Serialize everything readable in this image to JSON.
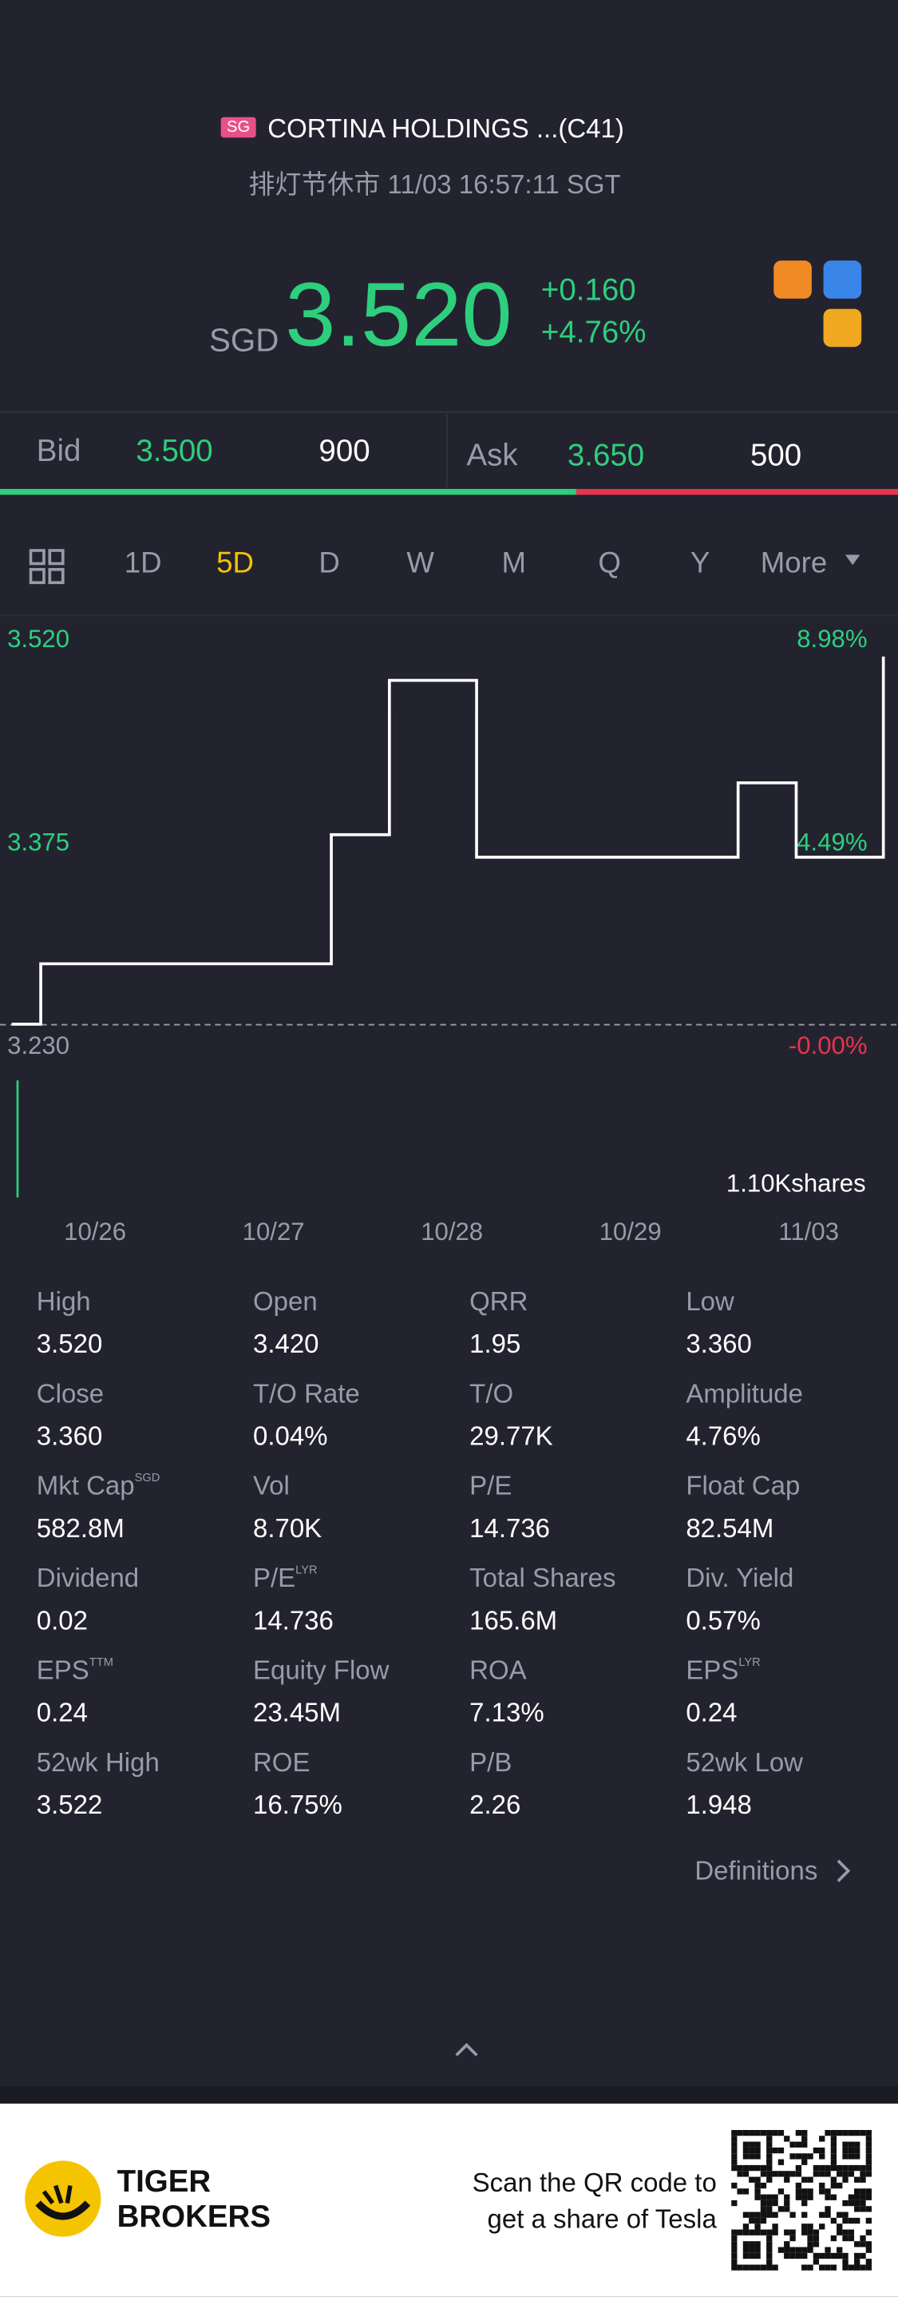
{
  "header": {
    "badge": "SG",
    "name": "CORTINA HOLDINGS ...(C41)",
    "status": "排灯节休市 11/03 16:57:11 SGT"
  },
  "quote": {
    "currency": "SGD",
    "price": "3.520",
    "change": "+0.160",
    "change_pct": "+4.76%"
  },
  "bidask": {
    "bid_label": "Bid",
    "bid": "3.500",
    "bid_size": "900",
    "ask_label": "Ask",
    "ask": "3.650",
    "ask_size": "500"
  },
  "tabs": [
    "1D",
    "5D",
    "D",
    "W",
    "M",
    "Q",
    "Y",
    "More"
  ],
  "chart": {
    "type": "line",
    "color": "#ffffff",
    "values": [
      3.245,
      3.288,
      3.288,
      3.288,
      3.288,
      3.288,
      3.288,
      3.288,
      3.288,
      3.288,
      3.288,
      3.38,
      3.38,
      3.49,
      3.49,
      3.49,
      3.364,
      3.364,
      3.364,
      3.364,
      3.364,
      3.364,
      3.364,
      3.364,
      3.364,
      3.417,
      3.417,
      3.364,
      3.364,
      3.364,
      3.507
    ],
    "ylim": [
      3.23,
      3.52
    ],
    "yticks": [
      {
        "value": 3.52,
        "label": "3.520"
      },
      {
        "value": 3.375,
        "label": "3.375"
      },
      {
        "value": 3.23,
        "label": "3.230"
      }
    ],
    "pct_ticks": [
      {
        "value": 8.98,
        "label": "8.98%"
      },
      {
        "value": 4.49,
        "label": "4.49%"
      },
      {
        "value": 0,
        "label": "-0.00%"
      }
    ],
    "volume_label": "1.10Kshares",
    "dates": [
      "10/26",
      "10/27",
      "10/28",
      "10/29",
      "11/03"
    ]
  },
  "stats": [
    [
      {
        "label": "High",
        "value": "3.520"
      },
      {
        "label": "Open",
        "value": "3.420"
      },
      {
        "label": "QRR",
        "value": "1.95"
      },
      {
        "label": "Low",
        "value": "3.360"
      }
    ],
    [
      {
        "label": "Close",
        "value": "3.360"
      },
      {
        "label": "T/O Rate",
        "value": "0.04%"
      },
      {
        "label": "T/O",
        "value": "29.77K"
      },
      {
        "label": "Amplitude",
        "value": "4.76%"
      }
    ],
    [
      {
        "label": "Mkt Cap",
        "sup": "SGD",
        "value": "582.8M"
      },
      {
        "label": "Vol",
        "value": "8.70K"
      },
      {
        "label": "P/E",
        "value": "14.736"
      },
      {
        "label": "Float Cap",
        "value": "82.54M"
      }
    ],
    [
      {
        "label": "Dividend",
        "value": "0.02"
      },
      {
        "label": "P/E",
        "sup": "LYR",
        "value": "14.736"
      },
      {
        "label": "Total Shares",
        "value": "165.6M"
      },
      {
        "label": "Div. Yield",
        "value": "0.57%"
      }
    ],
    [
      {
        "label": "EPS",
        "sup": "TTM",
        "value": "0.24"
      },
      {
        "label": "Equity Flow",
        "value": "23.45M"
      },
      {
        "label": "ROA",
        "value": "7.13%"
      },
      {
        "label": "EPS",
        "sup": "LYR",
        "value": "0.24"
      }
    ],
    [
      {
        "label": "52wk High",
        "value": "3.522"
      },
      {
        "label": "ROE",
        "value": "16.75%"
      },
      {
        "label": "P/B",
        "value": "2.26"
      },
      {
        "label": "52wk Low",
        "value": "1.948"
      }
    ]
  ],
  "definitions": "Definitions",
  "footer": {
    "brand_1": "TIGER",
    "brand_2": "BROKERS",
    "promo_1": "Scan the QR code to",
    "promo_2": "get a share of Tesla"
  }
}
